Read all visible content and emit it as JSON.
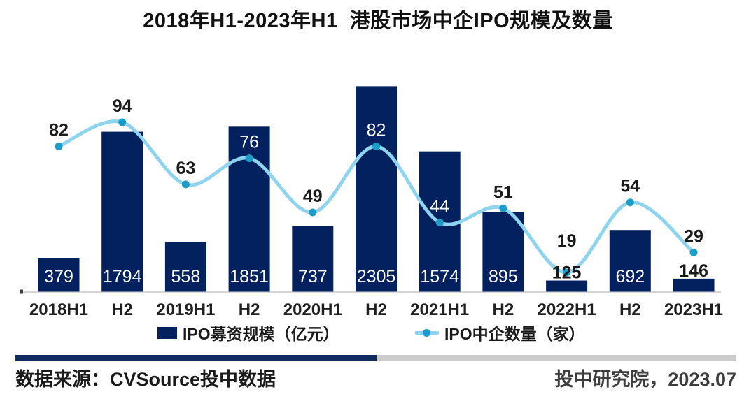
{
  "chart_data": {
    "type": "combo",
    "title": "2018年H1-2023年H1  港股市场中企IPO规模及数量",
    "categories": [
      "2018H1",
      "H2",
      "2019H1",
      "H2",
      "2020H1",
      "H2",
      "2021H1",
      "H2",
      "2022H1",
      "H2",
      "2023H1"
    ],
    "series": [
      {
        "name": "IPO募资规模（亿元）",
        "type": "bar",
        "values": [
          379,
          1794,
          558,
          1851,
          737,
          2305,
          1574,
          895,
          125,
          692,
          146
        ],
        "color": "#02215E",
        "label_color_inside": "#FFFFFF",
        "label_color_outside": "#1A1A1A"
      },
      {
        "name": "IPO中企数量（家）",
        "type": "line",
        "values": [
          82,
          94,
          63,
          76,
          49,
          82,
          44,
          51,
          19,
          54,
          29
        ],
        "color": "#8FD4EE",
        "marker_color": "#1B9CC9",
        "label_color_default": "#1A1A1A",
        "label_color_on_bar": "#FFFFFF"
      }
    ],
    "legend_position": "bottom",
    "grid": false,
    "y_axis_visible": false,
    "baseline_color": "#D6D6D6",
    "xtick_color": "#1F1F1F"
  },
  "footer": {
    "source": "数据来源：CVSource投中数据",
    "publisher": "投中研究院，2023.07",
    "divider_left_color": "#0D2B5E",
    "divider_right_color": "#CCCCCC"
  }
}
